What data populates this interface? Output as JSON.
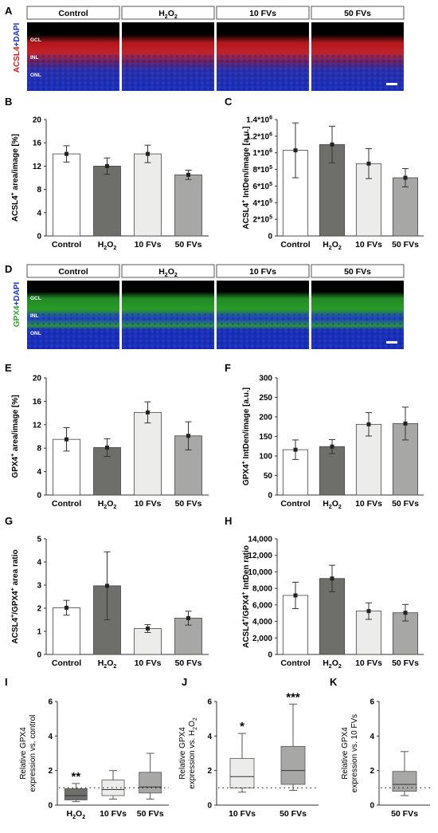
{
  "panels": {
    "A": "A",
    "B": "B",
    "C": "C",
    "D": "D",
    "E": "E",
    "F": "F",
    "G": "G",
    "H": "H",
    "I": "I",
    "J": "J",
    "K": "K"
  },
  "micrographs": {
    "groups": [
      "Control",
      "H2O2",
      "10 FVs",
      "50 FVs"
    ],
    "acsl4": {
      "stain_label": "ACSL4+DAPI",
      "layers": [
        "GCL",
        "INL",
        "ONL"
      ],
      "colors": {
        "marker": "#d01e1e",
        "nuclei": "#1c35c8",
        "background": "#000000"
      }
    },
    "gpx4": {
      "stain_label": "GPX4+DAPI",
      "layers": [
        "GCL",
        "INL",
        "ONL"
      ],
      "colors": {
        "marker": "#2aa52a",
        "nuclei": "#1c35c8",
        "background": "#000000"
      }
    }
  },
  "chart_data": [
    {
      "panel": "B",
      "type": "bar",
      "categories": [
        "Control",
        "H2O2",
        "10 FVs",
        "50 FVs"
      ],
      "values": [
        14.1,
        12.0,
        14.1,
        10.5
      ],
      "errors": [
        1.4,
        1.4,
        1.5,
        0.8
      ],
      "ylabel": "ACSL4+ area/image [%]",
      "ylim": [
        0,
        20
      ],
      "yticks": [
        0,
        4,
        8,
        12,
        16,
        20
      ],
      "ytick_labels": [
        "0",
        "4",
        "8",
        "12",
        "16",
        "20"
      ],
      "colors": [
        "#ffffff",
        "#6e6e6b",
        "#ececea",
        "#a7a7a5"
      ]
    },
    {
      "panel": "C",
      "type": "bar",
      "categories": [
        "Control",
        "H2O2",
        "10 FVs",
        "50 FVs"
      ],
      "values": [
        1030000,
        1100000,
        870000,
        700000
      ],
      "errors": [
        330000,
        220000,
        180000,
        110000
      ],
      "ylabel": "ACSL4+ IntDen/image [a.u.]",
      "ylim": [
        0,
        1400000
      ],
      "yticks": [
        0,
        200000,
        400000,
        600000,
        800000,
        1000000,
        1200000,
        1400000
      ],
      "ytick_labels": [
        "0",
        "2*10^5",
        "4*10^5",
        "6*10^5",
        "8*10^5",
        "1*10^6",
        "1.2*10^6",
        "1.4*10^6"
      ],
      "colors": [
        "#ffffff",
        "#6e6e6b",
        "#ececea",
        "#a7a7a5"
      ]
    },
    {
      "panel": "E",
      "type": "bar",
      "categories": [
        "Control",
        "H2O2",
        "10 FVs",
        "50 FVs"
      ],
      "values": [
        9.5,
        8.1,
        14.1,
        10.1
      ],
      "errors": [
        2.0,
        1.5,
        1.8,
        2.4
      ],
      "ylabel": "GPX4+ area/image [%]",
      "ylim": [
        0,
        20
      ],
      "yticks": [
        0,
        4,
        8,
        12,
        16,
        20
      ],
      "ytick_labels": [
        "0",
        "4",
        "8",
        "12",
        "16",
        "20"
      ],
      "colors": [
        "#ffffff",
        "#6e6e6b",
        "#ececea",
        "#a7a7a5"
      ]
    },
    {
      "panel": "F",
      "type": "bar",
      "categories": [
        "Control",
        "H2O2",
        "10 FVs",
        "50 FVs"
      ],
      "values": [
        116,
        124,
        181,
        183
      ],
      "errors": [
        25,
        18,
        30,
        42
      ],
      "ylabel": "GPX4+ IntDen/image [a.u.]",
      "ylim": [
        0,
        300
      ],
      "yticks": [
        0,
        50,
        100,
        150,
        200,
        250,
        300
      ],
      "ytick_labels": [
        "0",
        "50",
        "100",
        "150",
        "200",
        "250",
        "300"
      ],
      "colors": [
        "#ffffff",
        "#6e6e6b",
        "#ececea",
        "#a7a7a5"
      ]
    },
    {
      "panel": "G",
      "type": "bar",
      "categories": [
        "Control",
        "H2O2",
        "10 FVs",
        "50 FVs"
      ],
      "values": [
        2.02,
        2.97,
        1.12,
        1.57
      ],
      "errors": [
        0.32,
        1.47,
        0.17,
        0.3
      ],
      "ylabel": "ACSL4+/GPX4+ area ratio",
      "ylim": [
        0,
        5
      ],
      "yticks": [
        0,
        1,
        2,
        3,
        4,
        5
      ],
      "ytick_labels": [
        "0",
        "1",
        "2",
        "3",
        "4",
        "5"
      ],
      "colors": [
        "#ffffff",
        "#6e6e6b",
        "#ececea",
        "#a7a7a5"
      ]
    },
    {
      "panel": "H",
      "type": "bar",
      "categories": [
        "Control",
        "H2O2",
        "10 FVs",
        "50 FVs"
      ],
      "values": [
        7150,
        9200,
        5250,
        5050
      ],
      "errors": [
        1600,
        1600,
        1000,
        1000
      ],
      "ylabel": "ACSL4+/GPX4+ IntDen ratio",
      "ylim": [
        0,
        14000
      ],
      "yticks": [
        0,
        2000,
        4000,
        6000,
        8000,
        10000,
        12000,
        14000
      ],
      "ytick_labels": [
        "0",
        "2,000",
        "4,000",
        "6,000",
        "8,000",
        "10,000",
        "12,000",
        "14,000"
      ],
      "colors": [
        "#ffffff",
        "#6e6e6b",
        "#ececea",
        "#a7a7a5"
      ]
    },
    {
      "panel": "I",
      "type": "box",
      "categories": [
        "H2O2",
        "10 FVs",
        "50 FVs"
      ],
      "boxes": [
        {
          "whisker_low": 0.2,
          "q1": 0.3,
          "median": 0.55,
          "q3": 0.95,
          "whisker_high": 1.25,
          "color": "#6e6e6b"
        },
        {
          "whisker_low": 0.35,
          "q1": 0.55,
          "median": 0.9,
          "q3": 1.45,
          "whisker_high": 2.0,
          "color": "#ececea"
        },
        {
          "whisker_low": 0.35,
          "q1": 0.7,
          "median": 1.05,
          "q3": 1.9,
          "whisker_high": 3.0,
          "color": "#a7a7a5"
        }
      ],
      "significance": [
        "**",
        "",
        ""
      ],
      "ylabel_line1": "Relative GPX4",
      "ylabel_line2": "expression vs. control",
      "reference_line": 1,
      "ylim": [
        0,
        6
      ],
      "yticks": [
        0,
        2,
        4,
        6
      ],
      "ytick_labels": [
        "0",
        "2",
        "4",
        "6"
      ]
    },
    {
      "panel": "J",
      "type": "box",
      "categories": [
        "10 FVs",
        "50 FVs"
      ],
      "boxes": [
        {
          "whisker_low": 0.75,
          "q1": 1.0,
          "median": 1.65,
          "q3": 2.7,
          "whisker_high": 4.15,
          "color": "#ececea"
        },
        {
          "whisker_low": 0.85,
          "q1": 1.2,
          "median": 2.0,
          "q3": 3.4,
          "whisker_high": 5.85,
          "color": "#a7a7a5"
        }
      ],
      "significance": [
        "*",
        "***"
      ],
      "ylabel_line1": "Relative GPX4",
      "ylabel_line2": "expression vs. H2O2",
      "reference_line": 1,
      "ylim": [
        0,
        6
      ],
      "yticks": [
        0,
        2,
        4,
        6
      ],
      "ytick_labels": [
        "0",
        "2",
        "4",
        "6"
      ]
    },
    {
      "panel": "K",
      "type": "box",
      "categories": [
        "50 FVs"
      ],
      "boxes": [
        {
          "whisker_low": 0.55,
          "q1": 0.8,
          "median": 1.2,
          "q3": 1.95,
          "whisker_high": 3.1,
          "color": "#a7a7a5"
        }
      ],
      "significance": [
        ""
      ],
      "ylabel_line1": "Relative GPX4",
      "ylabel_line2": "expression vs. 10 FVs",
      "reference_line": 1,
      "ylim": [
        0,
        6
      ],
      "yticks": [
        0,
        2,
        4,
        6
      ],
      "ytick_labels": [
        "0",
        "2",
        "4",
        "6"
      ]
    }
  ]
}
